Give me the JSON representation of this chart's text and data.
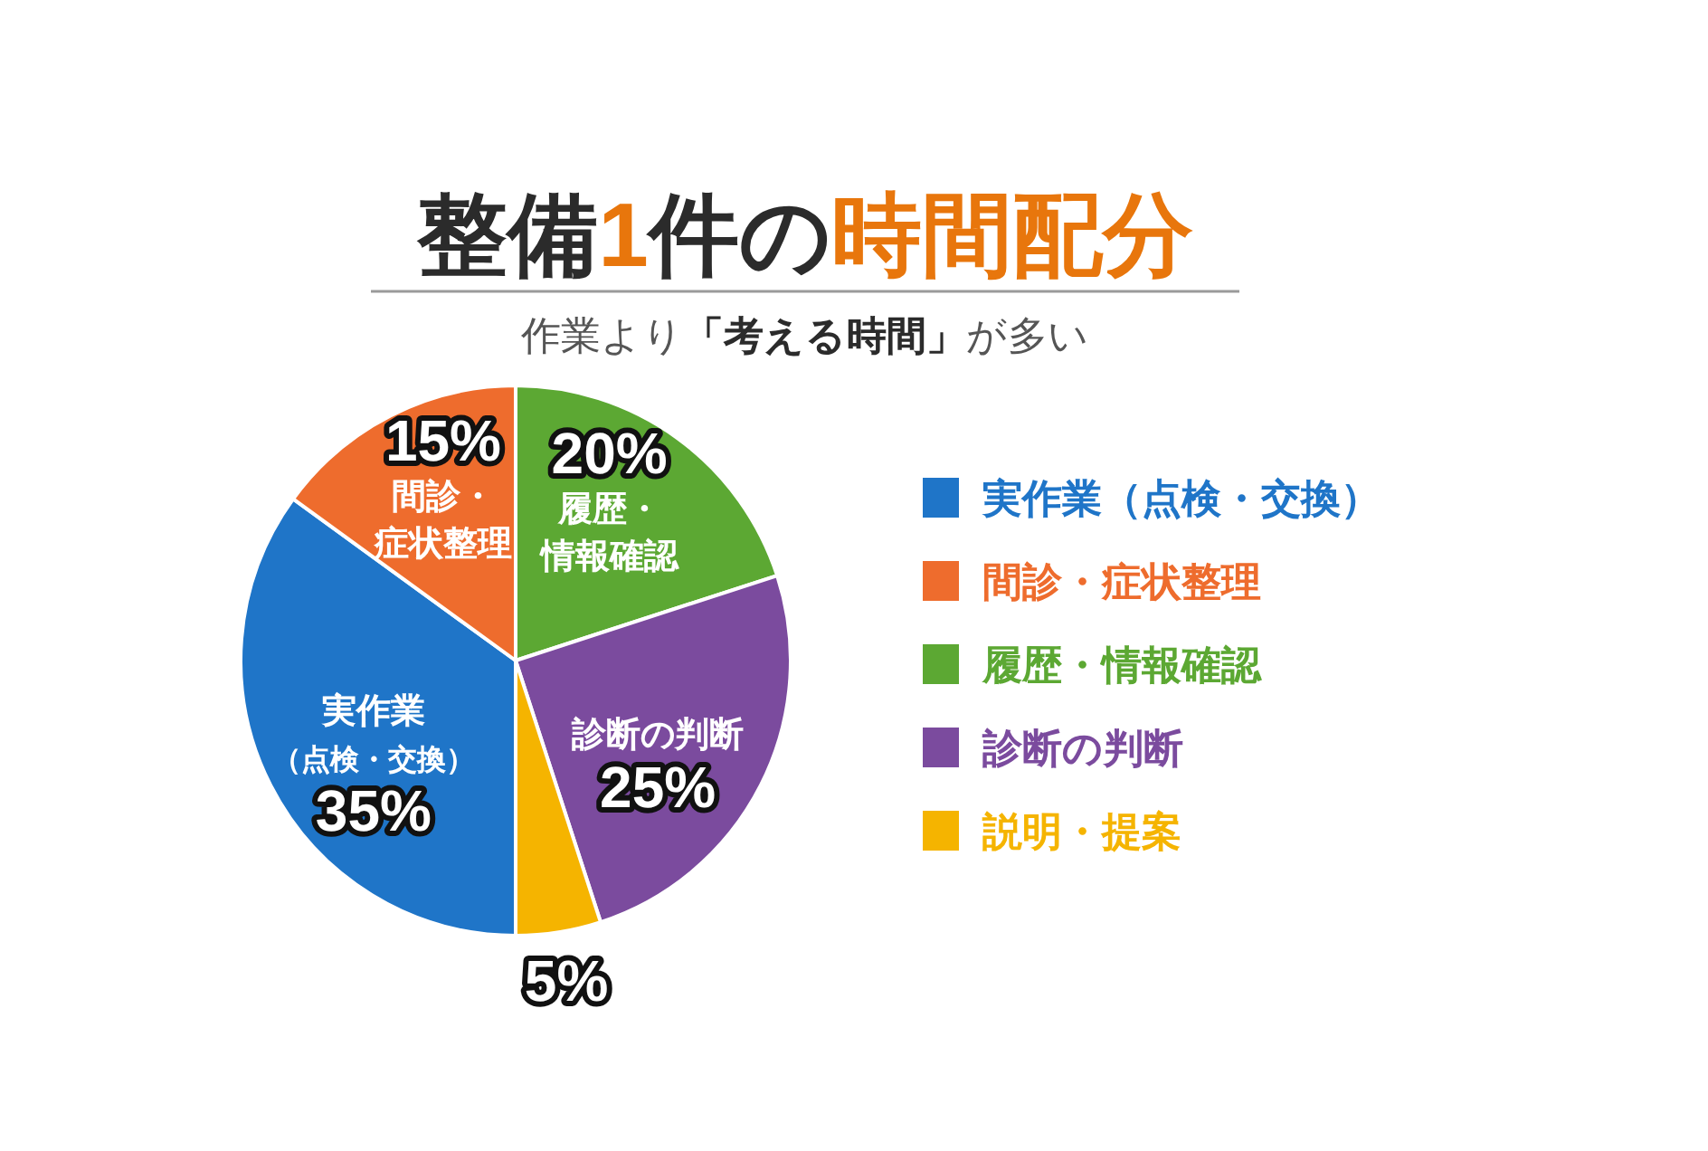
{
  "chart_data": {
    "type": "pie",
    "title": "整備1件の時間配分",
    "subtitle": "作業より「考える時間」が多い",
    "categories": [
      "実作業（点検・交換）",
      "間診・症状整理",
      "履歴・情報確認",
      "診断の判断",
      "説明・提案"
    ],
    "values": [
      35,
      15,
      20,
      25,
      5
    ],
    "colors": [
      "#1f75c8",
      "#ee6c2d",
      "#5ca833",
      "#7b4b9e",
      "#f5b400"
    ],
    "value_labels": [
      "35%",
      "15%",
      "20%",
      "25%",
      "5%"
    ],
    "legend": "right"
  }
}
